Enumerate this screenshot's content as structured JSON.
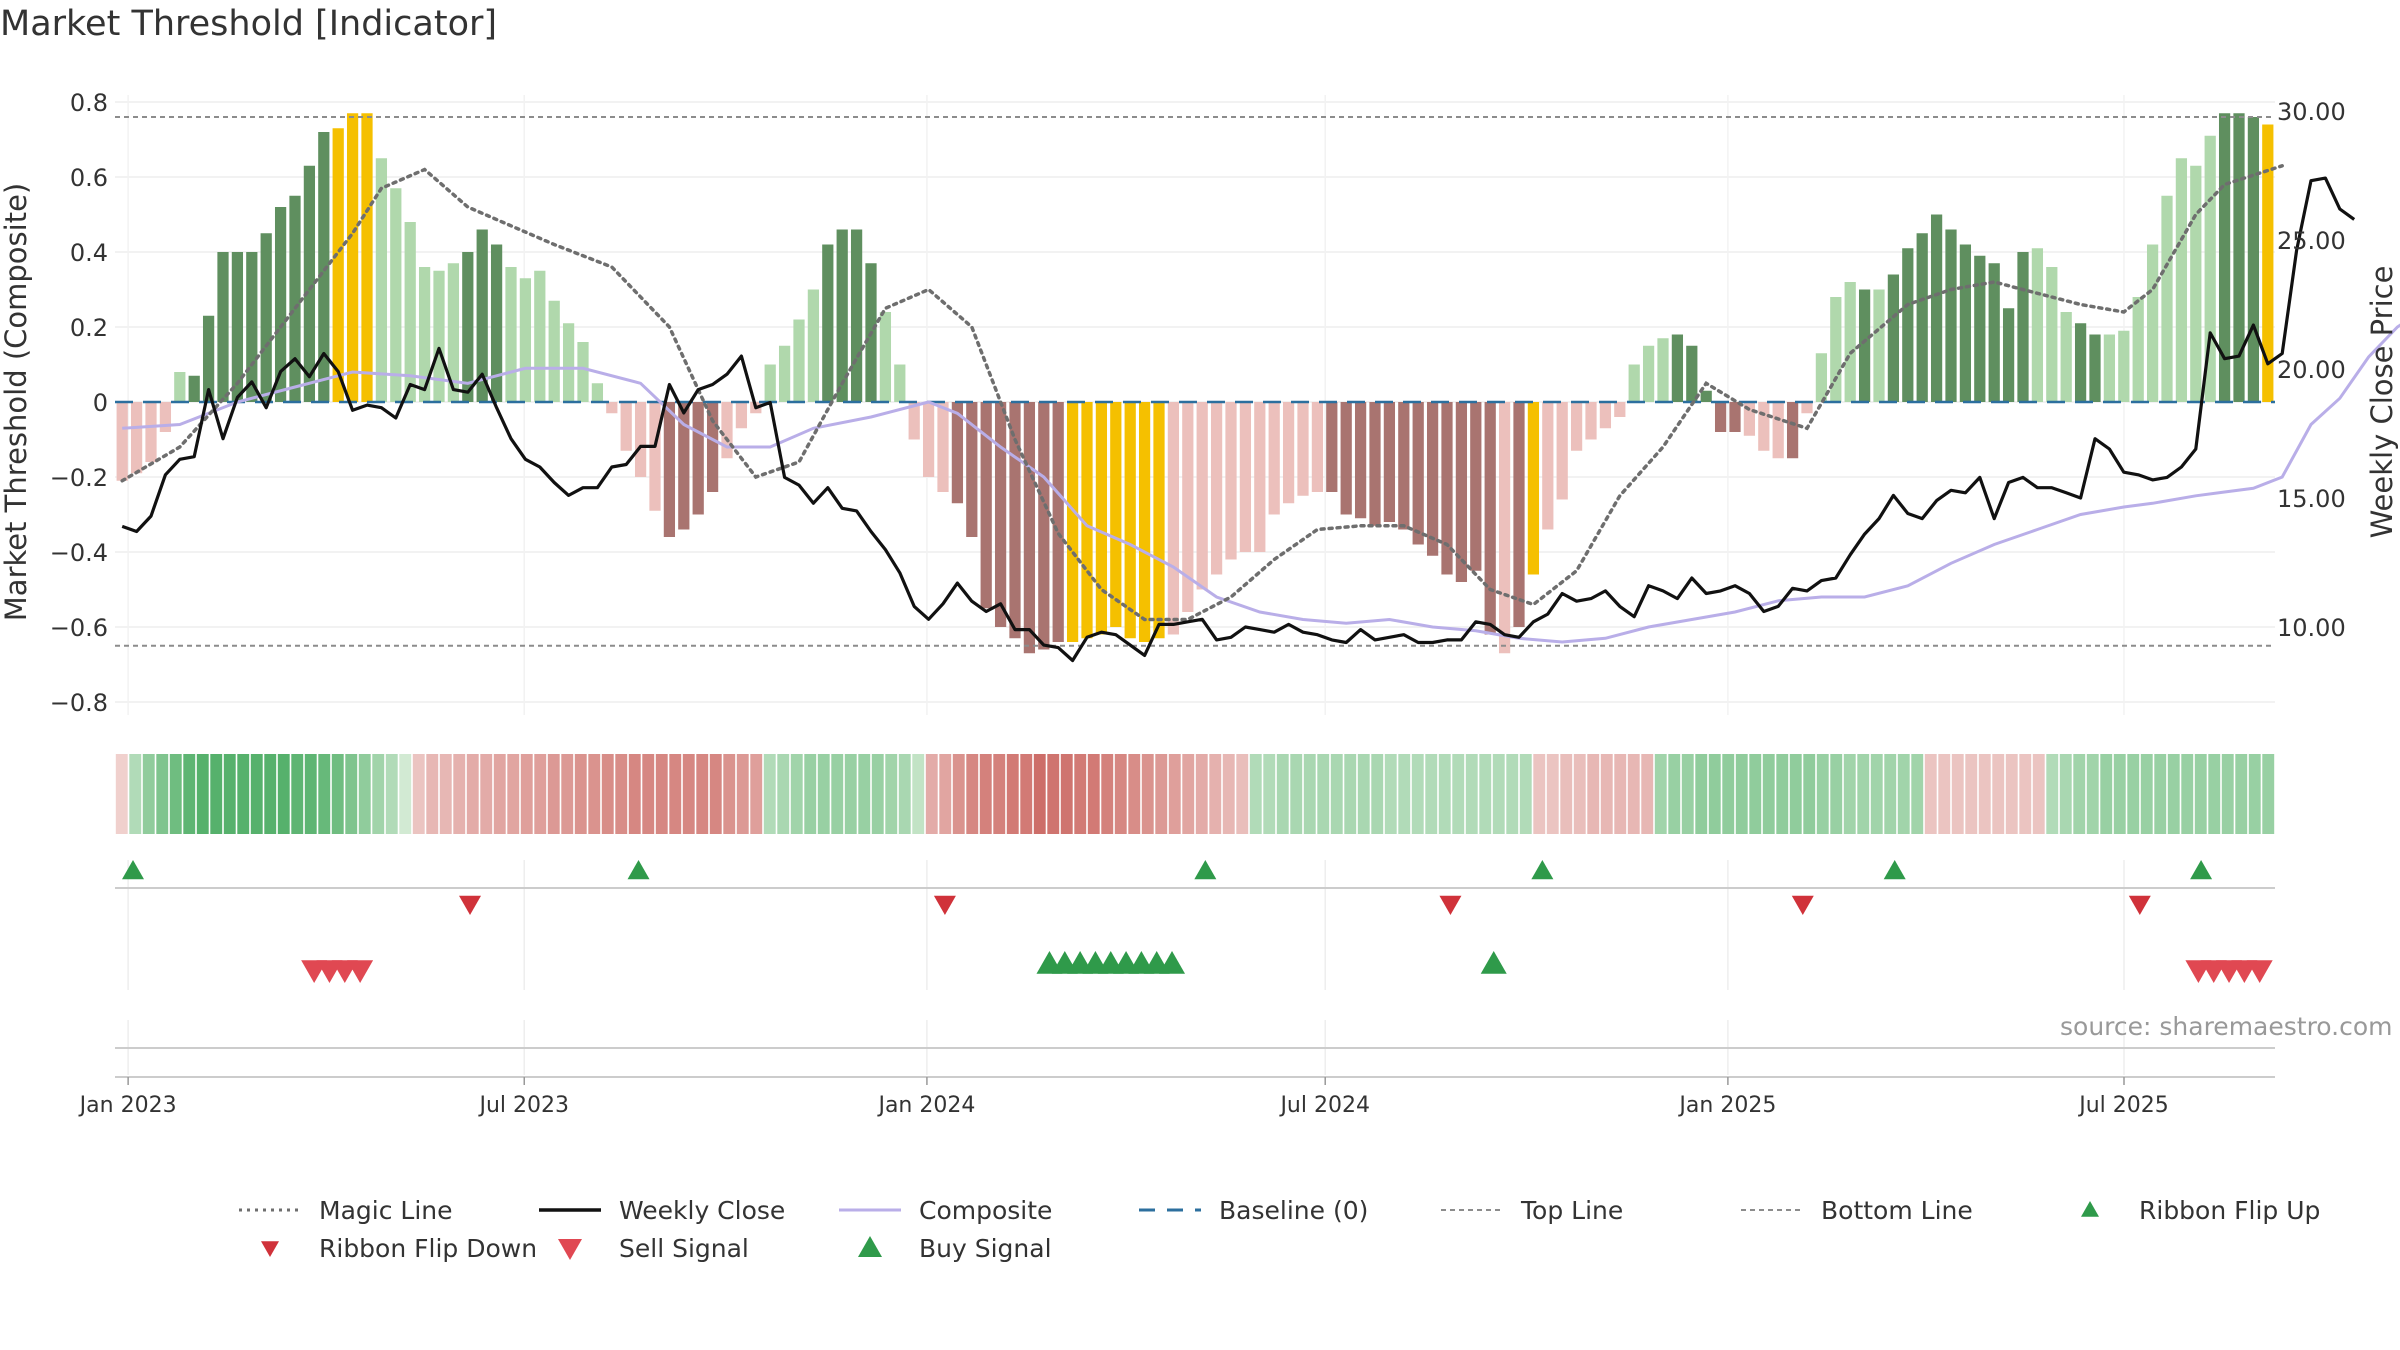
{
  "title": "Market Threshold [Indicator]",
  "source_text": "source: sharemaestro.com",
  "colors": {
    "magic": "#6e6e6e",
    "weekly": "#111111",
    "composite": "#b9aee8",
    "baseline": "#2c6f9e",
    "top": "#8c8c8c",
    "bottom": "#8c8c8c",
    "flip_up": "#2f9a4a",
    "flip_down": "#d0323a",
    "sell": "#e04852",
    "buy": "#2f9a4a",
    "extreme": "#f5c000",
    "green_dark": "#5f8f5f",
    "green_light": "#b0d8ac",
    "red_dark": "#a97470",
    "red_light": "#ecc0bc"
  },
  "chart_data": {
    "type": "bar",
    "title": "Market Threshold [Indicator]",
    "ylabel_left": "Market Threshold (Composite)",
    "ylabel_right": "Weekly Close Price",
    "ylim_left": [
      -0.85,
      0.85
    ],
    "yticks_left": [
      0.8,
      0.6,
      0.4,
      0.2,
      0,
      -0.2,
      -0.4,
      -0.6,
      -0.8
    ],
    "ytick_labels_left": [
      "0.8",
      "0.6",
      "0.4",
      "0.2",
      "0",
      "−0.2",
      "−0.4",
      "−0.6",
      "−0.8"
    ],
    "ylim_right": [
      6.25,
      31.5
    ],
    "yticks_right": [
      30,
      25,
      20,
      15,
      10
    ],
    "ytick_labels_right": [
      "30.00",
      "25.00",
      "20.00",
      "15.00",
      "10.00"
    ],
    "x_start": "2022-12-26",
    "x_end": "2025-09-08",
    "x_ticks": [
      "2023-01-01",
      "2023-07-01",
      "2024-01-01",
      "2024-07-01",
      "2025-01-01",
      "2025-07-01"
    ],
    "x_tick_labels": [
      "Jan 2023",
      "Jul 2023",
      "Jan 2024",
      "Jul 2024",
      "Jan 2025",
      "Jul 2025"
    ],
    "top_line": 0.76,
    "bottom_line": -0.65,
    "baseline": 0,
    "grid": true,
    "legend_position": "bottom",
    "composite_bars": [
      -0.21,
      -0.19,
      -0.16,
      -0.08,
      0.08,
      0.07,
      0.23,
      0.4,
      0.4,
      0.4,
      0.45,
      0.52,
      0.55,
      0.63,
      0.72,
      0.73,
      0.77,
      0.77,
      0.65,
      0.57,
      0.48,
      0.36,
      0.35,
      0.37,
      0.4,
      0.46,
      0.42,
      0.36,
      0.33,
      0.35,
      0.27,
      0.21,
      0.16,
      0.05,
      -0.03,
      -0.13,
      -0.2,
      -0.29,
      -0.36,
      -0.34,
      -0.3,
      -0.24,
      -0.15,
      -0.07,
      -0.03,
      0.1,
      0.15,
      0.22,
      0.3,
      0.42,
      0.46,
      0.46,
      0.37,
      0.24,
      0.1,
      -0.1,
      -0.2,
      -0.24,
      -0.27,
      -0.36,
      -0.55,
      -0.6,
      -0.63,
      -0.67,
      -0.66,
      -0.64,
      -0.64,
      -0.63,
      -0.62,
      -0.6,
      -0.63,
      -0.64,
      -0.63,
      -0.62,
      -0.56,
      -0.5,
      -0.46,
      -0.42,
      -0.4,
      -0.4,
      -0.3,
      -0.27,
      -0.25,
      -0.24,
      -0.24,
      -0.3,
      -0.31,
      -0.33,
      -0.32,
      -0.34,
      -0.38,
      -0.41,
      -0.46,
      -0.48,
      -0.45,
      -0.62,
      -0.67,
      -0.6,
      -0.46,
      -0.34,
      -0.26,
      -0.13,
      -0.1,
      -0.07,
      -0.04,
      0.1,
      0.15,
      0.17,
      0.18,
      0.15,
      0.03,
      -0.08,
      -0.08,
      -0.09,
      -0.13,
      -0.15,
      -0.15,
      -0.03,
      0.13,
      0.28,
      0.32,
      0.3,
      0.3,
      0.34,
      0.41,
      0.45,
      0.5,
      0.46,
      0.42,
      0.39,
      0.37,
      0.25,
      0.4,
      0.41,
      0.36,
      0.24,
      0.21,
      0.18,
      0.18,
      0.19,
      0.28,
      0.42,
      0.55,
      0.65,
      0.63,
      0.71,
      0.77,
      0.77,
      0.76,
      0.74
    ],
    "bar_color_codes": "lllllddddddddddyyylllllldddlllllllllllddddlllllllddddlllllddddddddyyyyyyylllllllllllddddddddddddldyllllllllldddddllldlllldlddddddddddlllddlllllllldddyyyy",
    "magic_line": [
      [
        0,
        -0.21
      ],
      [
        4,
        -0.12
      ],
      [
        8,
        0.05
      ],
      [
        12,
        0.25
      ],
      [
        16,
        0.45
      ],
      [
        18,
        0.57
      ],
      [
        21,
        0.62
      ],
      [
        24,
        0.52
      ],
      [
        27,
        0.47
      ],
      [
        30,
        0.42
      ],
      [
        34,
        0.36
      ],
      [
        38,
        0.2
      ],
      [
        41,
        -0.05
      ],
      [
        44,
        -0.2
      ],
      [
        47,
        -0.16
      ],
      [
        50,
        0.05
      ],
      [
        53,
        0.25
      ],
      [
        56,
        0.3
      ],
      [
        59,
        0.2
      ],
      [
        62,
        -0.1
      ],
      [
        65,
        -0.35
      ],
      [
        68,
        -0.5
      ],
      [
        71,
        -0.58
      ],
      [
        74,
        -0.58
      ],
      [
        77,
        -0.52
      ],
      [
        80,
        -0.42
      ],
      [
        83,
        -0.34
      ],
      [
        86,
        -0.33
      ],
      [
        89,
        -0.33
      ],
      [
        92,
        -0.38
      ],
      [
        95,
        -0.5
      ],
      [
        98,
        -0.54
      ],
      [
        101,
        -0.45
      ],
      [
        104,
        -0.25
      ],
      [
        107,
        -0.12
      ],
      [
        110,
        0.05
      ],
      [
        113,
        -0.02
      ],
      [
        117,
        -0.07
      ],
      [
        120,
        0.13
      ],
      [
        124,
        0.26
      ],
      [
        127,
        0.3
      ],
      [
        130,
        0.32
      ],
      [
        133,
        0.29
      ],
      [
        136,
        0.26
      ],
      [
        139,
        0.24
      ],
      [
        141,
        0.3
      ],
      [
        144,
        0.5
      ],
      [
        146,
        0.58
      ],
      [
        150,
        0.63
      ]
    ],
    "weekly_close": [
      [
        0,
        13.9
      ],
      [
        1,
        13.7
      ],
      [
        2,
        14.3
      ],
      [
        3,
        15.9
      ],
      [
        4,
        16.5
      ],
      [
        5,
        16.6
      ],
      [
        6,
        19.2
      ],
      [
        7,
        17.3
      ],
      [
        8,
        18.9
      ],
      [
        9,
        19.5
      ],
      [
        10,
        18.5
      ],
      [
        11,
        19.9
      ],
      [
        12,
        20.4
      ],
      [
        13,
        19.7
      ],
      [
        14,
        20.6
      ],
      [
        15,
        19.9
      ],
      [
        16,
        18.4
      ],
      [
        17,
        18.6
      ],
      [
        18,
        18.5
      ],
      [
        19,
        18.1
      ],
      [
        20,
        19.4
      ],
      [
        21,
        19.2
      ],
      [
        22,
        20.8
      ],
      [
        23,
        19.2
      ],
      [
        24,
        19.1
      ],
      [
        25,
        19.8
      ],
      [
        26,
        18.5
      ],
      [
        27,
        17.3
      ],
      [
        28,
        16.5
      ],
      [
        29,
        16.2
      ],
      [
        30,
        15.6
      ],
      [
        31,
        15.1
      ],
      [
        32,
        15.4
      ],
      [
        33,
        15.4
      ],
      [
        34,
        16.2
      ],
      [
        35,
        16.3
      ],
      [
        36,
        17.0
      ],
      [
        37,
        17.0
      ],
      [
        38,
        19.4
      ],
      [
        39,
        18.3
      ],
      [
        40,
        19.2
      ],
      [
        41,
        19.4
      ],
      [
        42,
        19.8
      ],
      [
        43,
        20.5
      ],
      [
        44,
        18.5
      ],
      [
        45,
        18.7
      ],
      [
        46,
        15.8
      ],
      [
        47,
        15.5
      ],
      [
        48,
        14.8
      ],
      [
        49,
        15.4
      ],
      [
        50,
        14.6
      ],
      [
        51,
        14.5
      ],
      [
        52,
        13.7
      ],
      [
        53,
        13.0
      ],
      [
        54,
        12.1
      ],
      [
        55,
        10.8
      ],
      [
        56,
        10.3
      ],
      [
        57,
        10.9
      ],
      [
        58,
        11.7
      ],
      [
        59,
        11.0
      ],
      [
        60,
        10.6
      ],
      [
        61,
        10.9
      ],
      [
        62,
        9.9
      ],
      [
        63,
        9.9
      ],
      [
        64,
        9.3
      ],
      [
        65,
        9.2
      ],
      [
        66,
        8.7
      ],
      [
        67,
        9.6
      ],
      [
        68,
        9.8
      ],
      [
        69,
        9.7
      ],
      [
        70,
        9.3
      ],
      [
        71,
        8.9
      ],
      [
        72,
        10.1
      ],
      [
        73,
        10.1
      ],
      [
        74,
        10.2
      ],
      [
        75,
        10.3
      ],
      [
        76,
        9.5
      ],
      [
        77,
        9.6
      ],
      [
        78,
        10.0
      ],
      [
        79,
        9.9
      ],
      [
        80,
        9.8
      ],
      [
        81,
        10.1
      ],
      [
        82,
        9.8
      ],
      [
        83,
        9.7
      ],
      [
        84,
        9.5
      ],
      [
        85,
        9.4
      ],
      [
        86,
        9.9
      ],
      [
        87,
        9.5
      ],
      [
        88,
        9.6
      ],
      [
        89,
        9.7
      ],
      [
        90,
        9.4
      ],
      [
        91,
        9.4
      ],
      [
        92,
        9.5
      ],
      [
        93,
        9.5
      ],
      [
        94,
        10.2
      ],
      [
        95,
        10.1
      ],
      [
        96,
        9.7
      ],
      [
        97,
        9.6
      ],
      [
        98,
        10.2
      ],
      [
        99,
        10.5
      ],
      [
        100,
        11.3
      ],
      [
        101,
        11.0
      ],
      [
        102,
        11.1
      ],
      [
        103,
        11.4
      ],
      [
        104,
        10.8
      ],
      [
        105,
        10.4
      ],
      [
        106,
        11.6
      ],
      [
        107,
        11.4
      ],
      [
        108,
        11.1
      ],
      [
        109,
        11.9
      ],
      [
        110,
        11.3
      ],
      [
        111,
        11.4
      ],
      [
        112,
        11.6
      ],
      [
        113,
        11.3
      ],
      [
        114,
        10.6
      ],
      [
        115,
        10.8
      ],
      [
        116,
        11.5
      ],
      [
        117,
        11.4
      ],
      [
        118,
        11.8
      ],
      [
        119,
        11.9
      ],
      [
        120,
        12.8
      ],
      [
        121,
        13.6
      ],
      [
        122,
        14.2
      ],
      [
        123,
        15.1
      ],
      [
        124,
        14.4
      ],
      [
        125,
        14.2
      ],
      [
        126,
        14.9
      ],
      [
        127,
        15.3
      ],
      [
        128,
        15.2
      ],
      [
        129,
        15.8
      ],
      [
        130,
        14.2
      ],
      [
        131,
        15.6
      ],
      [
        132,
        15.8
      ],
      [
        133,
        15.4
      ],
      [
        134,
        15.4
      ],
      [
        135,
        15.2
      ],
      [
        136,
        15.0
      ],
      [
        137,
        17.3
      ],
      [
        138,
        16.9
      ],
      [
        139,
        16.0
      ],
      [
        140,
        15.9
      ],
      [
        141,
        15.7
      ],
      [
        142,
        15.8
      ],
      [
        143,
        16.2
      ],
      [
        144,
        16.9
      ],
      [
        145,
        21.4
      ],
      [
        146,
        20.4
      ],
      [
        147,
        20.5
      ],
      [
        148,
        21.7
      ],
      [
        149,
        20.2
      ],
      [
        150,
        20.6
      ],
      [
        151,
        24.6
      ],
      [
        152,
        27.3
      ],
      [
        153,
        27.4
      ],
      [
        154,
        26.2
      ],
      [
        155,
        25.8
      ]
    ],
    "composite_line": [
      [
        0,
        -0.07
      ],
      [
        4,
        -0.06
      ],
      [
        8,
        0.0
      ],
      [
        12,
        0.04
      ],
      [
        16,
        0.08
      ],
      [
        20,
        0.07
      ],
      [
        24,
        0.05
      ],
      [
        28,
        0.09
      ],
      [
        32,
        0.09
      ],
      [
        36,
        0.05
      ],
      [
        39,
        -0.06
      ],
      [
        42,
        -0.12
      ],
      [
        45,
        -0.12
      ],
      [
        48,
        -0.07
      ],
      [
        52,
        -0.04
      ],
      [
        56,
        0.0
      ],
      [
        58,
        -0.03
      ],
      [
        61,
        -0.12
      ],
      [
        64,
        -0.2
      ],
      [
        67,
        -0.33
      ],
      [
        70,
        -0.38
      ],
      [
        73,
        -0.44
      ],
      [
        76,
        -0.52
      ],
      [
        79,
        -0.56
      ],
      [
        82,
        -0.58
      ],
      [
        85,
        -0.59
      ],
      [
        88,
        -0.58
      ],
      [
        91,
        -0.6
      ],
      [
        94,
        -0.61
      ],
      [
        97,
        -0.63
      ],
      [
        100,
        -0.64
      ],
      [
        103,
        -0.63
      ],
      [
        106,
        -0.6
      ],
      [
        109,
        -0.58
      ],
      [
        112,
        -0.56
      ],
      [
        115,
        -0.53
      ],
      [
        118,
        -0.52
      ],
      [
        121,
        -0.52
      ],
      [
        124,
        -0.49
      ],
      [
        127,
        -0.43
      ],
      [
        130,
        -0.38
      ],
      [
        133,
        -0.34
      ],
      [
        136,
        -0.3
      ],
      [
        139,
        -0.28
      ],
      [
        141,
        -0.27
      ],
      [
        144,
        -0.25
      ],
      [
        146,
        -0.24
      ],
      [
        148,
        -0.23
      ],
      [
        150,
        -0.2
      ],
      [
        152,
        -0.06
      ],
      [
        154,
        0.01
      ],
      [
        156,
        0.12
      ],
      [
        158,
        0.2
      ],
      [
        160,
        0.25
      ]
    ],
    "ribbon_values": [
      -0.1,
      0.3,
      0.5,
      0.6,
      0.7,
      0.8,
      0.85,
      0.85,
      0.85,
      0.85,
      0.85,
      0.85,
      0.85,
      0.8,
      0.8,
      0.75,
      0.7,
      0.6,
      0.5,
      0.4,
      0.3,
      0.1,
      -0.2,
      -0.3,
      -0.3,
      -0.35,
      -0.4,
      -0.4,
      -0.45,
      -0.45,
      -0.5,
      -0.5,
      -0.55,
      -0.55,
      -0.6,
      -0.6,
      -0.65,
      -0.65,
      -0.7,
      -0.7,
      -0.7,
      -0.7,
      -0.7,
      -0.7,
      -0.7,
      -0.6,
      -0.55,
      -0.5,
      0.3,
      0.35,
      0.4,
      0.45,
      0.45,
      0.45,
      0.45,
      0.45,
      0.45,
      0.4,
      0.35,
      0.2,
      -0.4,
      -0.45,
      -0.6,
      -0.7,
      -0.75,
      -0.75,
      -0.8,
      -0.8,
      -0.9,
      -0.85,
      -0.85,
      -0.8,
      -0.8,
      -0.75,
      -0.7,
      -0.65,
      -0.6,
      -0.55,
      -0.5,
      -0.45,
      -0.4,
      -0.35,
      -0.3,
      -0.25,
      0.3,
      0.3,
      0.35,
      0.35,
      0.35,
      0.35,
      0.35,
      0.35,
      0.35,
      0.35,
      0.3,
      0.3,
      0.3,
      0.3,
      0.3,
      0.3,
      0.3,
      0.3,
      0.3,
      0.3,
      0.3,
      -0.2,
      -0.2,
      -0.25,
      -0.25,
      -0.3,
      -0.3,
      -0.3,
      -0.3,
      -0.3,
      0.4,
      0.45,
      0.45,
      0.5,
      0.5,
      0.5,
      0.5,
      0.5,
      0.5,
      0.5,
      0.5,
      0.5,
      0.45,
      0.45,
      0.4,
      0.4,
      0.4,
      0.4,
      0.4,
      0.4,
      -0.2,
      -0.2,
      -0.2,
      -0.2,
      -0.2,
      -0.2,
      -0.2,
      -0.2,
      -0.2,
      0.3,
      0.35,
      0.4,
      0.4,
      0.45,
      0.45,
      0.45,
      0.45,
      0.45,
      0.45,
      0.45,
      0.45,
      0.45,
      0.45,
      0.45,
      0.45,
      0.45
    ],
    "ribbon_flip_up": [
      "2022-12-26",
      "2023-08-14",
      "2024-04-29",
      "2024-09-30",
      "2025-03-10",
      "2025-07-28"
    ],
    "ribbon_flip_down": [
      "2023-05-29",
      "2024-01-01",
      "2024-08-19",
      "2025-01-27",
      "2025-06-30"
    ],
    "buy_signals": [
      "2024-02-26",
      "2024-03-04",
      "2024-03-11",
      "2024-03-18",
      "2024-03-25",
      "2024-04-01",
      "2024-04-08",
      "2024-04-15",
      "2024-04-22",
      "2024-09-16"
    ],
    "sell_signals": [
      "2023-03-27",
      "2023-04-03",
      "2023-04-10",
      "2023-04-17",
      "2025-08-04",
      "2025-08-11",
      "2025-08-18",
      "2025-08-25",
      "2025-09-01"
    ]
  },
  "legend": [
    {
      "label": "Magic Line",
      "type": "dotted",
      "color_key": "magic"
    },
    {
      "label": "Weekly Close",
      "type": "solid",
      "color_key": "weekly"
    },
    {
      "label": "Composite",
      "type": "solid-thin",
      "color_key": "composite"
    },
    {
      "label": "Baseline (0)",
      "type": "dashed",
      "color_key": "baseline"
    },
    {
      "label": "Top Line",
      "type": "fine-dashed",
      "color_key": "top"
    },
    {
      "label": "Bottom Line",
      "type": "fine-dashed",
      "color_key": "bottom"
    },
    {
      "label": "Ribbon Flip Up",
      "type": "tri-up",
      "color_key": "flip_up"
    },
    {
      "label": "Ribbon Flip Down",
      "type": "tri-down",
      "color_key": "flip_down"
    },
    {
      "label": "Sell Signal",
      "type": "tri-down-big",
      "color_key": "sell"
    },
    {
      "label": "Buy Signal",
      "type": "tri-up-big",
      "color_key": "buy"
    }
  ]
}
